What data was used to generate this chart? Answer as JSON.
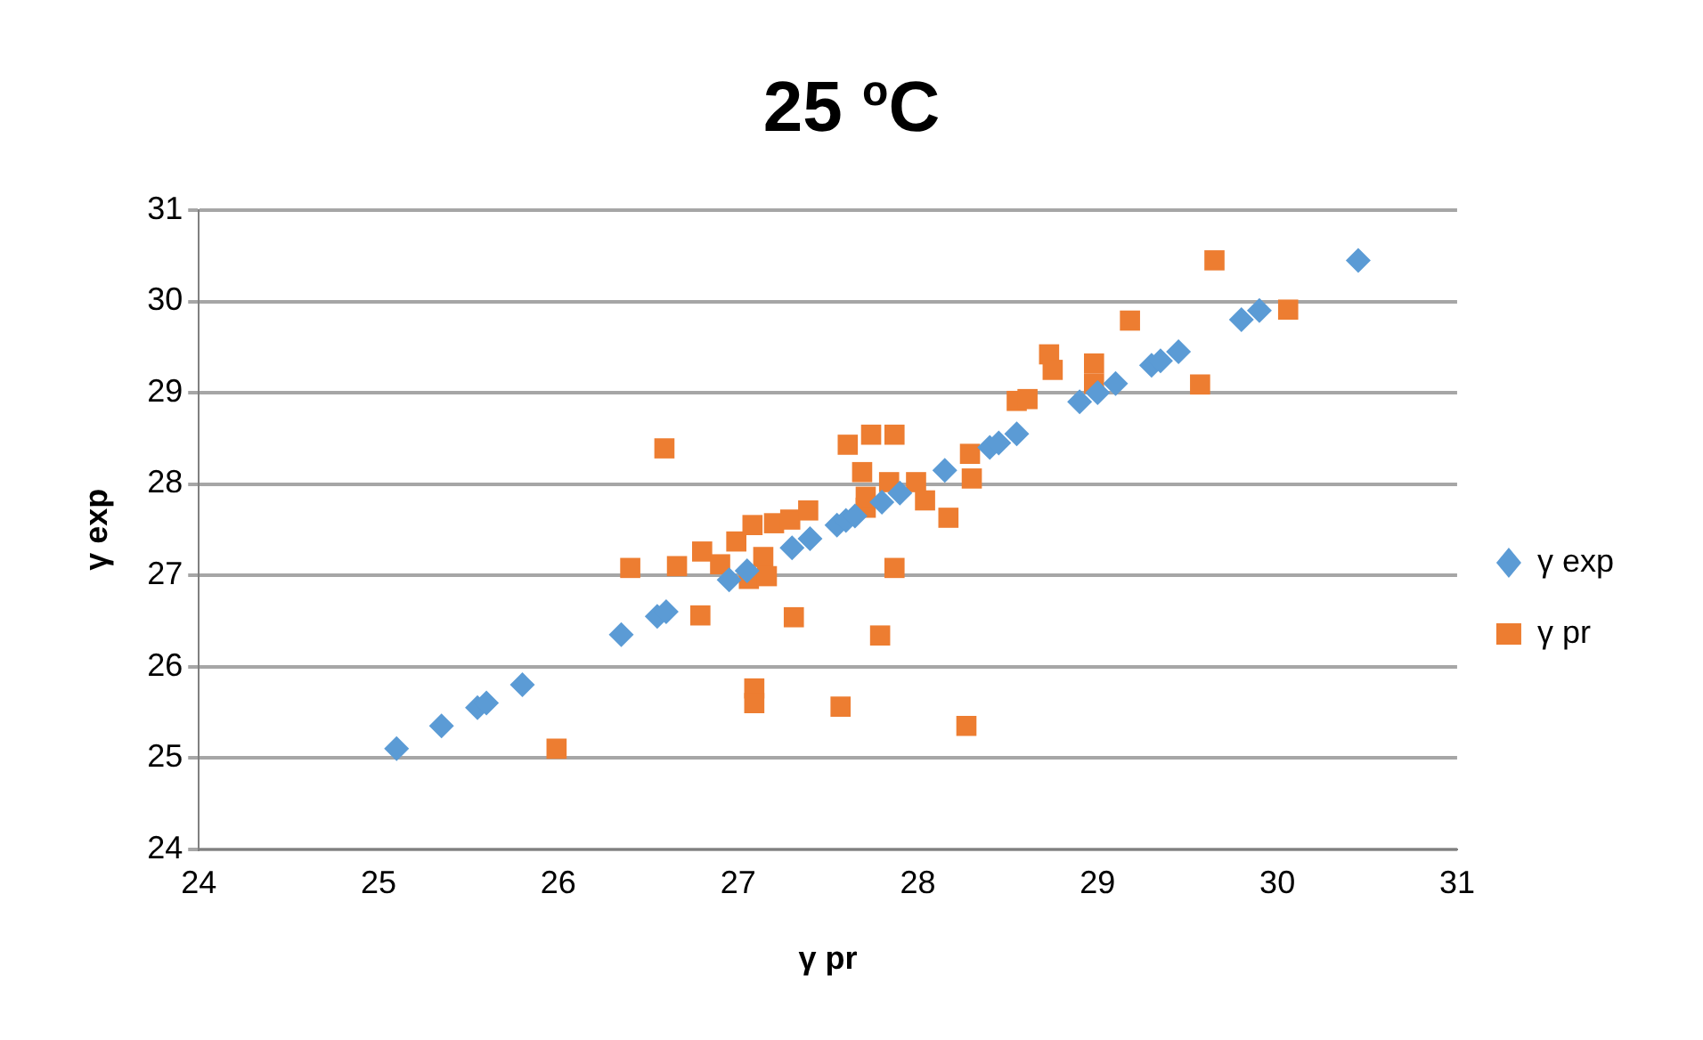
{
  "chart_data": {
    "type": "scatter",
    "title": "25 $^{o}$C",
    "xlabel": "γ pr",
    "ylabel": "γ exp",
    "xlim": [
      24,
      31
    ],
    "xticks": [
      24,
      25,
      26,
      27,
      28,
      29,
      30,
      31
    ],
    "ylim": [
      24,
      31
    ],
    "yticks": [
      24,
      25,
      26,
      27,
      28,
      29,
      30,
      31
    ],
    "grid": "y",
    "legend": "right",
    "series": [
      {
        "name": "γ exp",
        "color": "#5b9bd5",
        "marker": "diamond",
        "x": [
          25.1,
          25.35,
          25.55,
          25.6,
          25.8,
          26.35,
          26.55,
          26.6,
          26.95,
          27.05,
          27.3,
          27.4,
          27.55,
          27.6,
          27.65,
          27.8,
          27.9,
          28.15,
          28.4,
          28.45,
          28.55,
          28.9,
          29.0,
          29.1,
          29.3,
          29.35,
          29.45,
          29.8,
          29.9,
          30.45
        ],
        "values": [
          25.1,
          25.35,
          25.55,
          25.6,
          25.8,
          26.35,
          26.55,
          26.6,
          26.95,
          27.05,
          27.3,
          27.4,
          27.55,
          27.6,
          27.65,
          27.8,
          27.9,
          28.15,
          28.4,
          28.45,
          28.55,
          28.9,
          29.0,
          29.1,
          29.3,
          29.35,
          29.45,
          29.8,
          29.9,
          30.45
        ]
      },
      {
        "name": "γ pr",
        "color": "#ed7d31",
        "marker": "square",
        "x": [
          25.99,
          26.4,
          26.59,
          26.66,
          26.79,
          26.8,
          26.9,
          26.99,
          27.06,
          27.08,
          27.09,
          27.09,
          27.14,
          27.16,
          27.2,
          27.29,
          27.31,
          27.39,
          27.57,
          27.61,
          27.69,
          27.71,
          27.71,
          27.74,
          27.79,
          27.84,
          27.87,
          27.87,
          27.99,
          28.04,
          28.17,
          28.27,
          28.29,
          28.3,
          28.55,
          28.61,
          28.73,
          28.75,
          28.98,
          28.98,
          29.18,
          29.57,
          29.65,
          30.06
        ],
        "values": [
          25.1,
          27.08,
          28.39,
          27.1,
          26.56,
          27.26,
          27.12,
          27.37,
          26.96,
          27.55,
          25.76,
          25.6,
          27.2,
          26.99,
          27.57,
          27.61,
          26.54,
          27.71,
          25.56,
          28.43,
          28.13,
          27.74,
          27.86,
          28.54,
          26.34,
          28.02,
          28.54,
          27.08,
          28.02,
          27.82,
          27.63,
          25.35,
          28.33,
          28.06,
          28.91,
          28.93,
          29.42,
          29.25,
          29.32,
          29.1,
          29.79,
          29.09,
          30.45,
          29.91
        ]
      }
    ]
  }
}
